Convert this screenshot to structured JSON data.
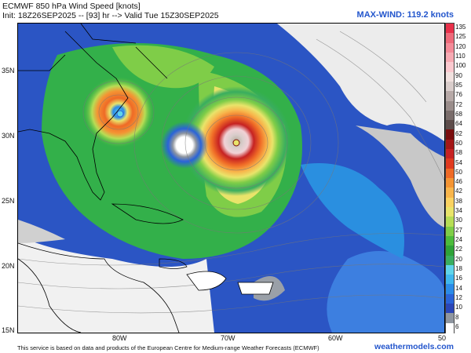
{
  "header": {
    "title_line1": "ECMWF 850 hPa Wind Speed [knots]",
    "title_line2": "Init: 18Z26SEP2025 -- [93] hr --> Valid Tue 15Z30SEP2025",
    "max_wind": "MAX-WIND: 119.2 knots"
  },
  "axes": {
    "lat": [
      "35N",
      "30N",
      "25N",
      "20N",
      "15N"
    ],
    "lon": [
      "80W",
      "70W",
      "60W",
      "50"
    ]
  },
  "colorbar": {
    "levels": [
      "135",
      "125",
      "120",
      "110",
      "100",
      "90",
      "85",
      "76",
      "72",
      "68",
      "64",
      "62",
      "60",
      "58",
      "54",
      "50",
      "46",
      "42",
      "38",
      "34",
      "30",
      "27",
      "24",
      "22",
      "20",
      "18",
      "16",
      "14",
      "12",
      "10",
      "8",
      "6"
    ],
    "colors": [
      "#e8304a",
      "#ee6a7a",
      "#f48b98",
      "#f7aab3",
      "#fbc9cf",
      "#f1e1df",
      "#d9cdcb",
      "#b7a9a7",
      "#9a8d8b",
      "#7a6d6b",
      "#5d4c4a",
      "#7a0d0d",
      "#a41717",
      "#c62222",
      "#e03a1f",
      "#ef6a26",
      "#f49433",
      "#f8b54b",
      "#fad261",
      "#e9e46a",
      "#b7dd55",
      "#7fcd48",
      "#4cbb3c",
      "#2ea238",
      "#39ad5f",
      "#5fd4ea",
      "#3fb7ee",
      "#2b8be8",
      "#2a63d8",
      "#2b46b8",
      "#8f96a0",
      "#ffffff"
    ]
  },
  "footer": {
    "credit": "This service is based on data and products of the European Centre for Medium-range Weather Forecasts (ECMWF)",
    "brand": "weathermodels.com"
  }
}
